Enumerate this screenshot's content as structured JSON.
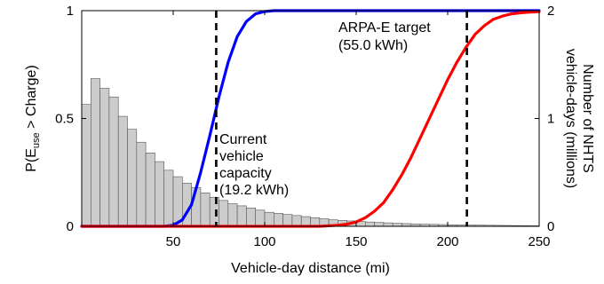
{
  "chart_data": {
    "type": "bar+line",
    "xlabel": "Vehicle-day distance (mi)",
    "ylabel_left": {
      "main": "P(E",
      "sub": "use",
      "rest": " > Charge)"
    },
    "ylabel_right_lines": [
      "Number of NHTS",
      "vehicle-days (millions)"
    ],
    "xlim": [
      0,
      250
    ],
    "ylim_left": [
      0,
      1
    ],
    "ylim_right": [
      0,
      2
    ],
    "xticks": [
      50,
      100,
      150,
      200,
      250
    ],
    "yticks_left": [
      0,
      0.5,
      1
    ],
    "yticks_right": [
      0,
      1,
      2
    ],
    "histogram": {
      "bin_width": 5,
      "bin_start": 0,
      "color": "#cccccc",
      "values": [
        1.13,
        1.37,
        1.28,
        1.2,
        1.02,
        0.9,
        0.78,
        0.68,
        0.6,
        0.52,
        0.46,
        0.4,
        0.36,
        0.31,
        0.27,
        0.24,
        0.21,
        0.19,
        0.17,
        0.15,
        0.13,
        0.12,
        0.11,
        0.1,
        0.09,
        0.08,
        0.07,
        0.06,
        0.055,
        0.05,
        0.045,
        0.04,
        0.036,
        0.032,
        0.028,
        0.025,
        0.022,
        0.02,
        0.018,
        0.016,
        0.014,
        0.013,
        0.012,
        0.011,
        0.01,
        0.009,
        0.008,
        0.007,
        0.006,
        0.005
      ]
    },
    "series": [
      {
        "color": "#0000ff",
        "x": [
          0,
          45,
          50,
          55,
          60,
          65,
          70,
          75,
          80,
          85,
          90,
          95,
          100,
          105,
          110,
          250
        ],
        "y": [
          0,
          0,
          0.005,
          0.03,
          0.1,
          0.25,
          0.42,
          0.6,
          0.76,
          0.88,
          0.95,
          0.985,
          0.996,
          1.0,
          1.0,
          1.0
        ]
      },
      {
        "color": "#ff0000",
        "x": [
          0,
          130,
          140,
          145,
          150,
          155,
          160,
          165,
          170,
          175,
          180,
          185,
          190,
          195,
          200,
          205,
          210,
          215,
          220,
          225,
          230,
          235,
          240,
          245,
          250
        ],
        "y": [
          0,
          0,
          0.005,
          0.01,
          0.02,
          0.04,
          0.07,
          0.11,
          0.17,
          0.24,
          0.32,
          0.41,
          0.5,
          0.59,
          0.68,
          0.76,
          0.83,
          0.89,
          0.93,
          0.96,
          0.975,
          0.985,
          0.99,
          0.993,
          0.995
        ]
      }
    ],
    "vlines": [
      {
        "x": 73.5,
        "style": "dashed"
      },
      {
        "x": 210.5,
        "style": "dashed"
      }
    ],
    "annotations": [
      {
        "lines": [
          "Current",
          "vehicle",
          "capacity",
          "(19.2 kWh)"
        ]
      },
      {
        "lines": [
          "ARPA-E target",
          "(55.0 kWh)"
        ]
      }
    ]
  }
}
